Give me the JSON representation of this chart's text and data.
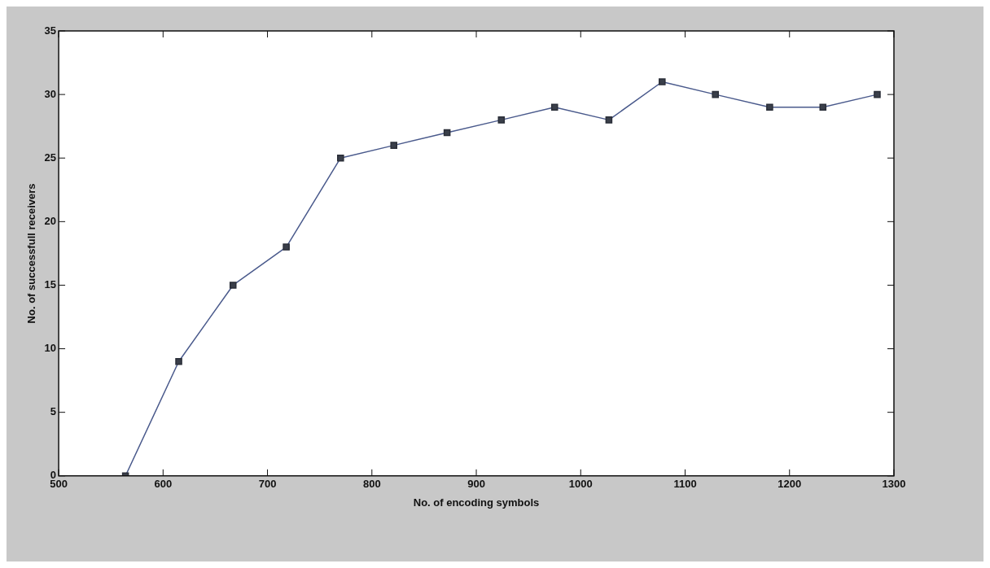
{
  "chart_data": {
    "type": "line",
    "xlabel": "No. of encoding symbols",
    "ylabel": "No. of successfull receivers",
    "x": [
      564,
      615,
      667,
      718,
      770,
      821,
      872,
      924,
      975,
      1027,
      1078,
      1129,
      1181,
      1232,
      1284
    ],
    "series": [
      {
        "color": "#4a5a8c",
        "values": [
          0,
          9,
          15,
          18,
          25,
          26,
          27,
          28,
          29,
          28,
          31,
          30,
          29,
          29,
          30
        ]
      }
    ],
    "xlim": [
      500,
      1300
    ],
    "xticks": [
      500,
      600,
      700,
      800,
      900,
      1000,
      1100,
      1200,
      1300
    ],
    "ylim": [
      0,
      35
    ],
    "yticks": [
      0,
      5,
      10,
      15,
      20,
      25,
      30,
      35
    ],
    "marker": "square",
    "line_style": "solid"
  }
}
